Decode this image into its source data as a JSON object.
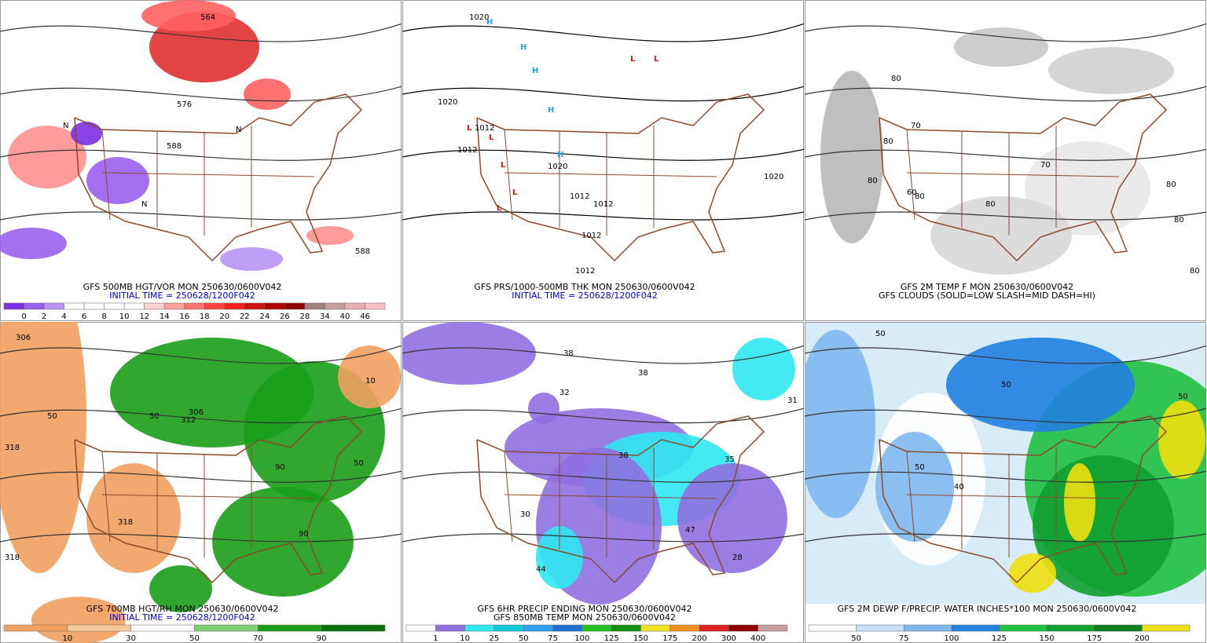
{
  "panels": [
    {
      "captions": [
        {
          "text": "GFS 500MB HGT/VOR MON 250630/0600V042",
          "color": "#000000"
        },
        {
          "text": "INITIAL TIME = 250628/1200F042",
          "color": "#0000cc"
        }
      ],
      "colorbar": {
        "labels": [
          "0",
          "2",
          "4",
          "6",
          "8",
          "10",
          "12",
          "14",
          "16",
          "18",
          "20",
          "22",
          "24",
          "26",
          "28",
          "34",
          "40",
          "46"
        ],
        "colors": [
          "#7a2fe0",
          "#9a60f0",
          "#b894f5",
          "#ffffff",
          "#ffffff",
          "#ffffff",
          "#ffffff",
          "#ffd0d0",
          "#ffa0a0",
          "#ff7070",
          "#ff4040",
          "#f02020",
          "#d01010",
          "#b00000",
          "#900000",
          "#a08080",
          "#c8a0a0",
          "#e8b0b0",
          "#ffc0c8"
        ]
      },
      "map_labels": [
        "564",
        "576",
        "588",
        "588",
        "N",
        "N",
        "N"
      ]
    },
    {
      "captions": [
        {
          "text": "GFS PRS/1000-500MB THK MON 250630/0600V042",
          "color": "#000000"
        },
        {
          "text": "INITIAL TIME = 250628/1200F042",
          "color": "#0000cc"
        }
      ],
      "colorbar": null,
      "map_labels": [
        "1020",
        "1020",
        "1012",
        "1012",
        "1012",
        "1012",
        "1012",
        "1020",
        "1012",
        "1020",
        "H",
        "H",
        "H",
        "H",
        "H",
        "L",
        "L",
        "L",
        "L",
        "L",
        "L",
        "L"
      ]
    },
    {
      "captions": [
        {
          "text": "GFS 2M TEMP F MON 250630/0600V042",
          "color": "#000000"
        },
        {
          "text": "GFS CLOUDS (SOLID=LOW SLASH=MID DASH=HI)",
          "color": "#000000"
        }
      ],
      "colorbar": null,
      "map_labels": [
        "80",
        "70",
        "80",
        "80",
        "70",
        "80",
        "80",
        "60",
        "80",
        "80",
        "80"
      ]
    },
    {
      "captions": [
        {
          "text": "GFS 700MB HGT/RH MON 250630/0600V042",
          "color": "#000000"
        },
        {
          "text": "INITIAL TIME = 250628/1200F042",
          "color": "#0000cc"
        }
      ],
      "colorbar": {
        "labels": [
          "10",
          "30",
          "50",
          "70",
          "90"
        ],
        "colors": [
          "#f0a060",
          "#f7c898",
          "#ffffff",
          "#7fd070",
          "#1a9e1a",
          "#0a700a"
        ]
      },
      "map_labels": [
        "306",
        "318",
        "318",
        "318",
        "306",
        "312",
        "50",
        "50",
        "90",
        "90",
        "50",
        "10"
      ]
    },
    {
      "captions": [
        {
          "text": "GFS 6HR PRECIP ENDING MON 250630/0600V042",
          "color": "#000000"
        },
        {
          "text": "GFS 850MB TEMP MON 250630/0600V042",
          "color": "#000000"
        }
      ],
      "colorbar": {
        "labels": [
          "1",
          "10",
          "25",
          "50",
          "75",
          "100",
          "125",
          "150",
          "175",
          "200",
          "300",
          "400"
        ],
        "colors": [
          "#ffffff",
          "#9070e0",
          "#30e8f0",
          "#10c8d8",
          "#30a0f0",
          "#2070d8",
          "#20c020",
          "#109010",
          "#f0e020",
          "#f09020",
          "#e02020",
          "#900000",
          "#c8a0a0"
        ]
      },
      "map_labels": [
        "38",
        "32",
        "38",
        "31",
        "30",
        "38",
        "35",
        "47",
        "44",
        "28"
      ]
    },
    {
      "captions": [
        {
          "text": "GFS 2M DEWP F/PRECIP. WATER INCHES*100 MON 250630/0600V042",
          "color": "#000000"
        }
      ],
      "colorbar": {
        "labels": [
          "50",
          "75",
          "100",
          "125",
          "150",
          "175",
          "200"
        ],
        "colors": [
          "#ffffff",
          "#c8e0f8",
          "#80b8f0",
          "#2080e0",
          "#20c040",
          "#10a030",
          "#0a8020",
          "#f0e010"
        ]
      },
      "map_labels": [
        "50",
        "50",
        "50",
        "40",
        "50"
      ]
    }
  ]
}
